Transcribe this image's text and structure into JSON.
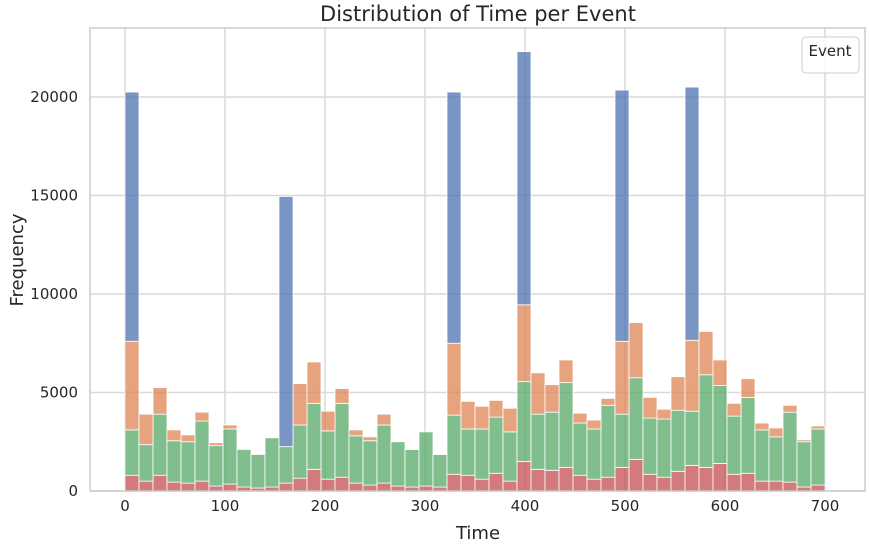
{
  "chart_data": {
    "type": "bar",
    "stacked": true,
    "title": "Distribution of Time per Event",
    "xlabel": "Time",
    "ylabel": "Frequency",
    "xlim": [
      -35,
      740
    ],
    "ylim": [
      0,
      23500
    ],
    "xticks": [
      0,
      100,
      200,
      300,
      400,
      500,
      600,
      700
    ],
    "yticks": [
      0,
      5000,
      10000,
      15000,
      20000
    ],
    "grid": true,
    "legend": {
      "title": "Event",
      "placement": "top-right",
      "entries": []
    },
    "bin_width": 14,
    "bin_start": 0,
    "series": [
      {
        "name": "series-red",
        "color": "#C44E52",
        "values": [
          800,
          500,
          800,
          450,
          400,
          500,
          250,
          350,
          200,
          150,
          200,
          400,
          650,
          1100,
          600,
          700,
          400,
          300,
          400,
          250,
          200,
          250,
          200,
          850,
          800,
          600,
          900,
          500,
          1500,
          1100,
          1050,
          1200,
          800,
          600,
          700,
          1200,
          1600,
          850,
          700,
          1000,
          1300,
          1200,
          1400,
          850,
          900,
          500,
          500,
          450,
          200,
          300
        ]
      },
      {
        "name": "series-green",
        "color": "#55A868",
        "values": [
          2300,
          1850,
          3100,
          2100,
          2100,
          3050,
          2050,
          2800,
          1900,
          1700,
          2500,
          1850,
          2700,
          3350,
          2450,
          3750,
          2400,
          2250,
          2950,
          2250,
          1900,
          2750,
          1650,
          3000,
          2350,
          2550,
          2850,
          2500,
          4050,
          2800,
          2950,
          4300,
          2650,
          2550,
          3650,
          2700,
          4150,
          2850,
          2950,
          3100,
          2750,
          4700,
          3950,
          2950,
          3850,
          2600,
          2250,
          3550,
          2300,
          2850
        ]
      },
      {
        "name": "series-orange",
        "color": "#DD8452",
        "values": [
          4500,
          1550,
          1350,
          550,
          350,
          450,
          150,
          200,
          50,
          50,
          0,
          0,
          2100,
          2100,
          1000,
          750,
          300,
          200,
          550,
          0,
          0,
          0,
          0,
          3650,
          1400,
          1150,
          850,
          1200,
          3900,
          2100,
          1400,
          1150,
          500,
          450,
          350,
          3700,
          2800,
          1050,
          500,
          1700,
          3600,
          2200,
          1300,
          650,
          950,
          350,
          450,
          350,
          100,
          150
        ]
      },
      {
        "name": "series-blue",
        "color": "#4C72B0",
        "values": [
          12650,
          0,
          0,
          0,
          0,
          0,
          0,
          0,
          0,
          0,
          0,
          12700,
          0,
          0,
          0,
          0,
          0,
          0,
          0,
          0,
          0,
          0,
          0,
          12750,
          0,
          0,
          0,
          0,
          12850,
          0,
          0,
          0,
          0,
          0,
          0,
          12750,
          0,
          0,
          0,
          0,
          12850,
          0,
          0,
          0,
          0,
          0,
          0,
          0,
          0,
          0
        ]
      }
    ]
  }
}
